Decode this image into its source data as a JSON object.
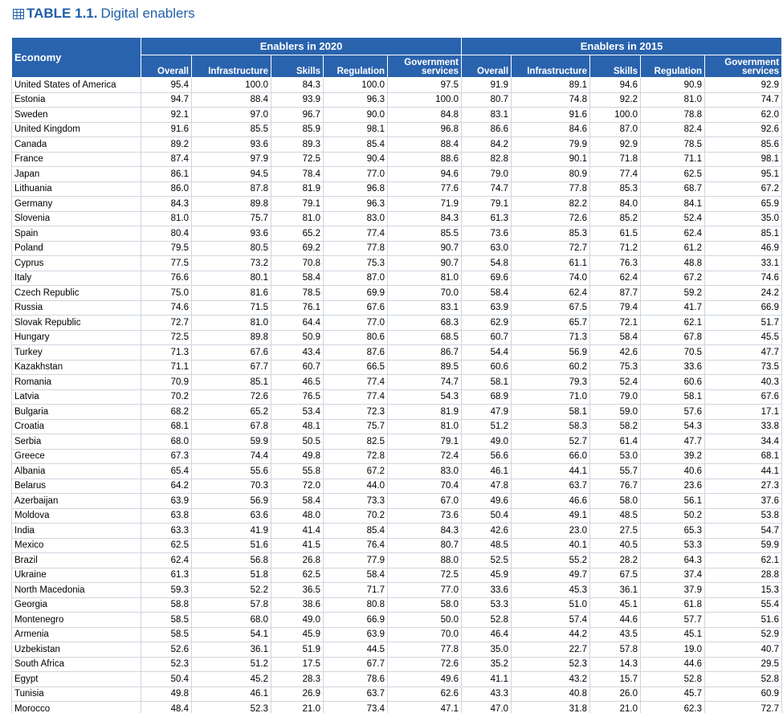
{
  "title": {
    "label": "TABLE 1.1.",
    "text": "Digital enablers"
  },
  "header": {
    "economy": "Economy",
    "groups": [
      "Enablers in 2020",
      "Enablers in 2015"
    ],
    "columns": [
      "Overall",
      "Infrastructure",
      "Skills",
      "Regulation",
      "Government services"
    ]
  },
  "table": {
    "rows": [
      [
        "United States of America",
        "95.4",
        "100.0",
        "84.3",
        "100.0",
        "97.5",
        "91.9",
        "89.1",
        "94.6",
        "90.9",
        "92.9"
      ],
      [
        "Estonia",
        "94.7",
        "88.4",
        "93.9",
        "96.3",
        "100.0",
        "80.7",
        "74.8",
        "92.2",
        "81.0",
        "74.7"
      ],
      [
        "Sweden",
        "92.1",
        "97.0",
        "96.7",
        "90.0",
        "84.8",
        "83.1",
        "91.6",
        "100.0",
        "78.8",
        "62.0"
      ],
      [
        "United Kingdom",
        "91.6",
        "85.5",
        "85.9",
        "98.1",
        "96.8",
        "86.6",
        "84.6",
        "87.0",
        "82.4",
        "92.6"
      ],
      [
        "Canada",
        "89.2",
        "93.6",
        "89.3",
        "85.4",
        "88.4",
        "84.2",
        "79.9",
        "92.9",
        "78.5",
        "85.6"
      ],
      [
        "France",
        "87.4",
        "97.9",
        "72.5",
        "90.4",
        "88.6",
        "82.8",
        "90.1",
        "71.8",
        "71.1",
        "98.1"
      ],
      [
        "Japan",
        "86.1",
        "94.5",
        "78.4",
        "77.0",
        "94.6",
        "79.0",
        "80.9",
        "77.4",
        "62.5",
        "95.1"
      ],
      [
        "Lithuania",
        "86.0",
        "87.8",
        "81.9",
        "96.8",
        "77.6",
        "74.7",
        "77.8",
        "85.3",
        "68.7",
        "67.2"
      ],
      [
        "Germany",
        "84.3",
        "89.8",
        "79.1",
        "96.3",
        "71.9",
        "79.1",
        "82.2",
        "84.0",
        "84.1",
        "65.9"
      ],
      [
        "Slovenia",
        "81.0",
        "75.7",
        "81.0",
        "83.0",
        "84.3",
        "61.3",
        "72.6",
        "85.2",
        "52.4",
        "35.0"
      ],
      [
        "Spain",
        "80.4",
        "93.6",
        "65.2",
        "77.4",
        "85.5",
        "73.6",
        "85.3",
        "61.5",
        "62.4",
        "85.1"
      ],
      [
        "Poland",
        "79.5",
        "80.5",
        "69.2",
        "77.8",
        "90.7",
        "63.0",
        "72.7",
        "71.2",
        "61.2",
        "46.9"
      ],
      [
        "Cyprus",
        "77.5",
        "73.2",
        "70.8",
        "75.3",
        "90.7",
        "54.8",
        "61.1",
        "76.3",
        "48.8",
        "33.1"
      ],
      [
        "Italy",
        "76.6",
        "80.1",
        "58.4",
        "87.0",
        "81.0",
        "69.6",
        "74.0",
        "62.4",
        "67.2",
        "74.6"
      ],
      [
        "Czech Republic",
        "75.0",
        "81.6",
        "78.5",
        "69.9",
        "70.0",
        "58.4",
        "62.4",
        "87.7",
        "59.2",
        "24.2"
      ],
      [
        "Russia",
        "74.6",
        "71.5",
        "76.1",
        "67.6",
        "83.1",
        "63.9",
        "67.5",
        "79.4",
        "41.7",
        "66.9"
      ],
      [
        "Slovak Republic",
        "72.7",
        "81.0",
        "64.4",
        "77.0",
        "68.3",
        "62.9",
        "65.7",
        "72.1",
        "62.1",
        "51.7"
      ],
      [
        "Hungary",
        "72.5",
        "89.8",
        "50.9",
        "80.6",
        "68.5",
        "60.7",
        "71.3",
        "58.4",
        "67.8",
        "45.5"
      ],
      [
        "Turkey",
        "71.3",
        "67.6",
        "43.4",
        "87.6",
        "86.7",
        "54.4",
        "56.9",
        "42.6",
        "70.5",
        "47.7"
      ],
      [
        "Kazakhstan",
        "71.1",
        "67.7",
        "60.7",
        "66.5",
        "89.5",
        "60.6",
        "60.2",
        "75.3",
        "33.6",
        "73.5"
      ],
      [
        "Romania",
        "70.9",
        "85.1",
        "46.5",
        "77.4",
        "74.7",
        "58.1",
        "79.3",
        "52.4",
        "60.6",
        "40.3"
      ],
      [
        "Latvia",
        "70.2",
        "72.6",
        "76.5",
        "77.4",
        "54.3",
        "68.9",
        "71.0",
        "79.0",
        "58.1",
        "67.6"
      ],
      [
        "Bulgaria",
        "68.2",
        "65.2",
        "53.4",
        "72.3",
        "81.9",
        "47.9",
        "58.1",
        "59.0",
        "57.6",
        "17.1"
      ],
      [
        "Croatia",
        "68.1",
        "67.8",
        "48.1",
        "75.7",
        "81.0",
        "51.2",
        "58.3",
        "58.2",
        "54.3",
        "33.8"
      ],
      [
        "Serbia",
        "68.0",
        "59.9",
        "50.5",
        "82.5",
        "79.1",
        "49.0",
        "52.7",
        "61.4",
        "47.7",
        "34.4"
      ],
      [
        "Greece",
        "67.3",
        "74.4",
        "49.8",
        "72.8",
        "72.4",
        "56.6",
        "66.0",
        "53.0",
        "39.2",
        "68.1"
      ],
      [
        "Albania",
        "65.4",
        "55.6",
        "55.8",
        "67.2",
        "83.0",
        "46.1",
        "44.1",
        "55.7",
        "40.6",
        "44.1"
      ],
      [
        "Belarus",
        "64.2",
        "70.3",
        "72.0",
        "44.0",
        "70.4",
        "47.8",
        "63.7",
        "76.7",
        "23.6",
        "27.3"
      ],
      [
        "Azerbaijan",
        "63.9",
        "56.9",
        "58.4",
        "73.3",
        "67.0",
        "49.6",
        "46.6",
        "58.0",
        "56.1",
        "37.6"
      ],
      [
        "Moldova",
        "63.8",
        "63.6",
        "48.0",
        "70.2",
        "73.6",
        "50.4",
        "49.1",
        "48.5",
        "50.2",
        "53.8"
      ],
      [
        "India",
        "63.3",
        "41.9",
        "41.4",
        "85.4",
        "84.3",
        "42.6",
        "23.0",
        "27.5",
        "65.3",
        "54.7"
      ],
      [
        "Mexico",
        "62.5",
        "51.6",
        "41.5",
        "76.4",
        "80.7",
        "48.5",
        "40.1",
        "40.5",
        "53.3",
        "59.9"
      ],
      [
        "Brazil",
        "62.4",
        "56.8",
        "26.8",
        "77.9",
        "88.0",
        "52.5",
        "55.2",
        "28.2",
        "64.3",
        "62.1"
      ],
      [
        "Ukraine",
        "61.3",
        "51.8",
        "62.5",
        "58.4",
        "72.5",
        "45.9",
        "49.7",
        "67.5",
        "37.4",
        "28.8"
      ],
      [
        "North Macedonia",
        "59.3",
        "52.2",
        "36.5",
        "71.7",
        "77.0",
        "33.6",
        "45.3",
        "36.1",
        "37.9",
        "15.3"
      ],
      [
        "Georgia",
        "58.8",
        "57.8",
        "38.6",
        "80.8",
        "58.0",
        "53.3",
        "51.0",
        "45.1",
        "61.8",
        "55.4"
      ],
      [
        "Montenegro",
        "58.5",
        "68.0",
        "49.0",
        "66.9",
        "50.0",
        "52.8",
        "57.4",
        "44.6",
        "57.7",
        "51.6"
      ],
      [
        "Armenia",
        "58.5",
        "54.1",
        "45.9",
        "63.9",
        "70.0",
        "46.4",
        "44.2",
        "43.5",
        "45.1",
        "52.9"
      ],
      [
        "Uzbekistan",
        "52.6",
        "36.1",
        "51.9",
        "44.5",
        "77.8",
        "35.0",
        "22.7",
        "57.8",
        "19.0",
        "40.7"
      ],
      [
        "South Africa",
        "52.3",
        "51.2",
        "17.5",
        "67.7",
        "72.6",
        "35.2",
        "52.3",
        "14.3",
        "44.6",
        "29.5"
      ],
      [
        "Egypt",
        "50.4",
        "45.2",
        "28.3",
        "78.6",
        "49.6",
        "41.1",
        "43.2",
        "15.7",
        "52.8",
        "52.8"
      ],
      [
        "Tunisia",
        "49.8",
        "46.1",
        "26.9",
        "63.7",
        "62.6",
        "43.3",
        "40.8",
        "26.0",
        "45.7",
        "60.9"
      ],
      [
        "Morocco",
        "48.4",
        "52.3",
        "21.0",
        "73.4",
        "47.1",
        "47.0",
        "31.8",
        "21.0",
        "62.3",
        "72.7"
      ]
    ]
  }
}
